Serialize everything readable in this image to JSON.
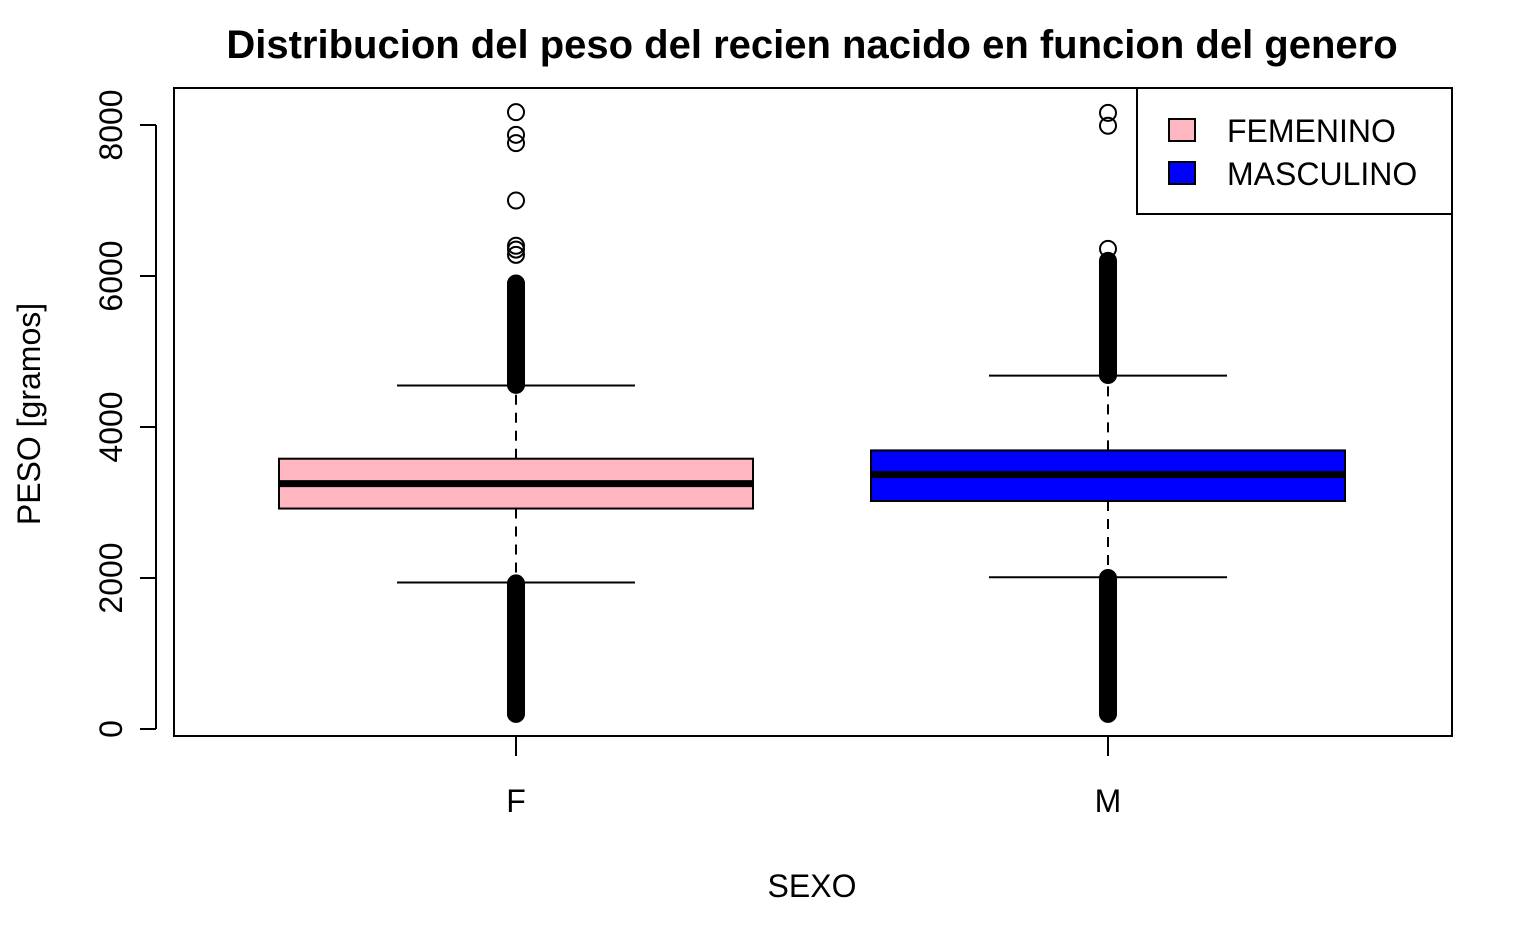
{
  "chart_data": {
    "type": "boxplot",
    "title": "Distribucion del peso del recien nacido en funcion del genero",
    "xlabel": "SEXO",
    "ylabel": "PESO [gramos]",
    "ylim": [
      0,
      8500
    ],
    "yticks": [
      0,
      2000,
      4000,
      6000,
      8000
    ],
    "ytick_labels": [
      "0",
      "2000",
      "4000",
      "6000",
      "8000"
    ],
    "categories": [
      "F",
      "M"
    ],
    "legend": {
      "position": "top-right",
      "entries": [
        {
          "label": "FEMENINO",
          "color": "#ffb6c1"
        },
        {
          "label": "MASCULINO",
          "color": "#0000ff"
        }
      ]
    },
    "boxes": [
      {
        "category": "F",
        "name": "FEMENINO",
        "color": "#ffb6c1",
        "whisker_low": 1940,
        "q1": 2920,
        "median": 3250,
        "q3": 3580,
        "whisker_high": 4550,
        "outliers_high": [
          4560,
          4650,
          4750,
          4850,
          4950,
          5050,
          5150,
          5250,
          5350,
          5450,
          5550,
          5650,
          5750,
          5850,
          5900,
          6280,
          6350,
          6400,
          7000,
          7760,
          7870,
          8170
        ],
        "outliers_low_range": [
          200,
          1930
        ]
      },
      {
        "category": "M",
        "name": "MASCULINO",
        "color": "#0000ff",
        "whisker_low": 2010,
        "q1": 3020,
        "median": 3370,
        "q3": 3690,
        "whisker_high": 4680,
        "outliers_high": [
          4690,
          4800,
          4900,
          5000,
          5100,
          5200,
          5300,
          5400,
          5500,
          5600,
          5700,
          5800,
          5900,
          6000,
          6100,
          6150,
          6200,
          6360,
          7990,
          8160
        ],
        "outliers_low_range": [
          200,
          2000
        ]
      }
    ]
  }
}
